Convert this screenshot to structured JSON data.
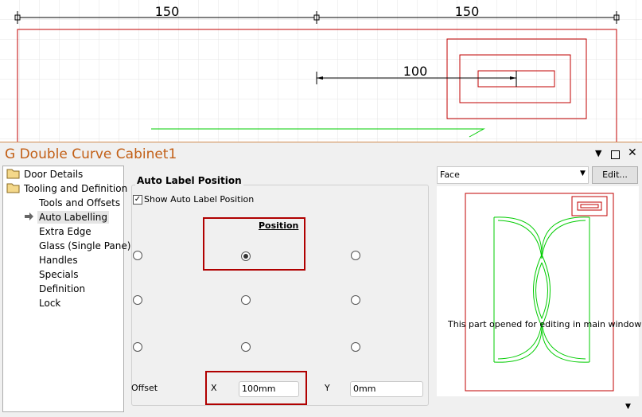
{
  "canvas": {
    "dimensions": [
      150,
      150,
      100
    ]
  },
  "window": {
    "title": "G Double Curve Cabinet1"
  },
  "tree": {
    "items": [
      "Door Details",
      "Tooling and Definition",
      "Tools and Offsets",
      "Auto Labelling",
      "Extra Edge",
      "Glass (Single Pane)",
      "Handles",
      "Specials",
      "Definition",
      "Lock"
    ]
  },
  "panel": {
    "group_title": "Auto Label Position",
    "checkbox": "Show Auto Label Position",
    "position_label": "Position",
    "offset_label": "Offset",
    "x_label": "X",
    "x_value": "100mm",
    "y_label": "Y",
    "y_value": "0mm"
  },
  "preview": {
    "view": "Face",
    "edit_button": "Edit...",
    "message": "This part opened for editing in main window"
  }
}
